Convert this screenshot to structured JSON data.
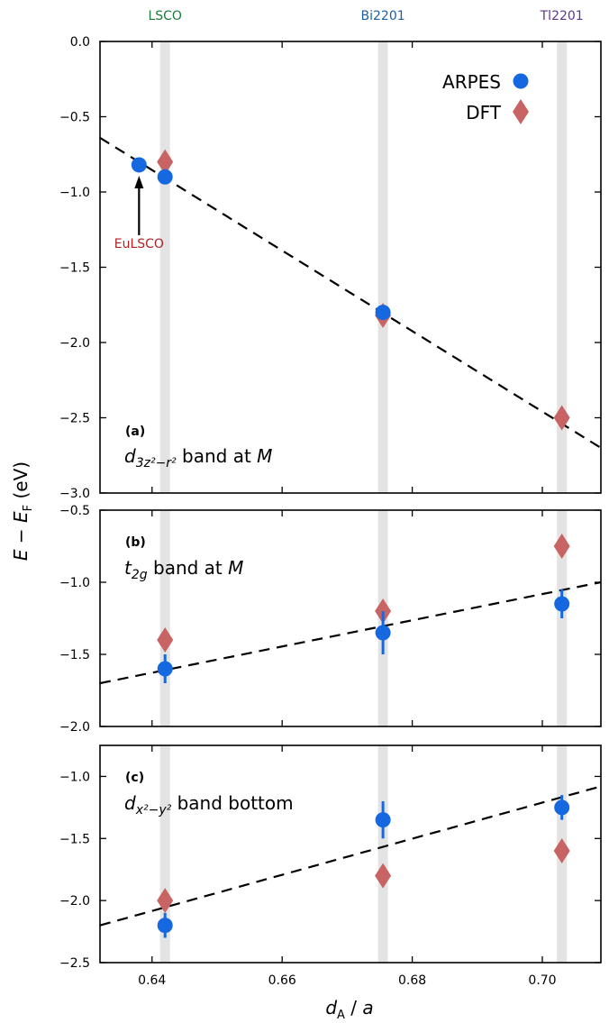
{
  "figure": {
    "ylabel": "E − E_F (eV)",
    "xlabel": "d_A / a",
    "top_labels": [
      {
        "text": "LSCO",
        "x": 0.642,
        "color": "#1a7a3a"
      },
      {
        "text": "Bi2201",
        "x": 0.6755,
        "color": "#1f5fa0"
      },
      {
        "text": "Tl2201",
        "x": 0.703,
        "color": "#5a3a90"
      }
    ],
    "legend": [
      {
        "label": "ARPES",
        "marker": "circle",
        "color": "#1668e0"
      },
      {
        "label": "DFT",
        "marker": "diamond",
        "color": "#c86464"
      }
    ],
    "colors": {
      "arpes": "#1668e0",
      "dft": "#c86464",
      "band": "#e3e3e3",
      "fit": "#000000",
      "annotation": "#b22222"
    }
  },
  "chart_data": [
    {
      "type": "scatter",
      "panel_label": "(a)",
      "title": "d_{3z²−r²} band at M",
      "xlim": [
        0.632,
        0.709
      ],
      "ylim": [
        -3.0,
        0.0
      ],
      "yticks": [
        0.0,
        -0.5,
        -1.0,
        -1.5,
        -2.0,
        -2.5,
        -3.0
      ],
      "ytick_labels": [
        "0.0",
        "−0.5",
        "−1.0",
        "−1.5",
        "−2.0",
        "−2.5",
        "−3.0"
      ],
      "vbands": [
        0.642,
        0.6755,
        0.703
      ],
      "series": [
        {
          "name": "ARPES",
          "marker": "circle",
          "x": [
            0.638,
            0.642,
            0.6755
          ],
          "y": [
            -0.82,
            -0.9,
            -1.8
          ],
          "yerr": [
            0,
            0,
            0
          ]
        },
        {
          "name": "DFT",
          "marker": "diamond",
          "x": [
            0.642,
            0.6755,
            0.703
          ],
          "y": [
            -0.8,
            -1.82,
            -2.5
          ]
        }
      ],
      "fit_line": {
        "x": [
          0.632,
          0.709
        ],
        "y": [
          -0.64,
          -2.7
        ]
      },
      "annotation": {
        "text": "EuLSCO",
        "x": 0.638,
        "y": -0.82
      }
    },
    {
      "type": "scatter",
      "panel_label": "(b)",
      "title": "t_{2g} band at M",
      "xlim": [
        0.632,
        0.709
      ],
      "ylim": [
        -2.0,
        -0.5
      ],
      "yticks": [
        -0.5,
        -1.0,
        -1.5,
        -2.0
      ],
      "ytick_labels": [
        "−0.5",
        "−1.0",
        "−1.5",
        "−2.0"
      ],
      "vbands": [
        0.642,
        0.6755,
        0.703
      ],
      "series": [
        {
          "name": "ARPES",
          "marker": "circle",
          "x": [
            0.642,
            0.6755,
            0.703
          ],
          "y": [
            -1.6,
            -1.35,
            -1.15
          ],
          "yerr": [
            0.1,
            0.15,
            0.1
          ]
        },
        {
          "name": "DFT",
          "marker": "diamond",
          "x": [
            0.642,
            0.6755,
            0.703
          ],
          "y": [
            -1.4,
            -1.2,
            -0.75
          ]
        }
      ],
      "fit_line": {
        "x": [
          0.632,
          0.709
        ],
        "y": [
          -1.7,
          -1.0
        ]
      }
    },
    {
      "type": "scatter",
      "panel_label": "(c)",
      "title": "d_{x²−y²} band bottom",
      "xlim": [
        0.632,
        0.709
      ],
      "ylim": [
        -2.5,
        -0.75
      ],
      "yticks": [
        -1.0,
        -1.5,
        -2.0,
        -2.5
      ],
      "ytick_labels": [
        "−1.0",
        "−1.5",
        "−2.0",
        "−2.5"
      ],
      "xticks": [
        0.64,
        0.66,
        0.68,
        0.7
      ],
      "xtick_labels": [
        "0.64",
        "0.66",
        "0.68",
        "0.70"
      ],
      "vbands": [
        0.642,
        0.6755,
        0.703
      ],
      "series": [
        {
          "name": "ARPES",
          "marker": "circle",
          "x": [
            0.642,
            0.6755,
            0.703
          ],
          "y": [
            -2.2,
            -1.35,
            -1.25
          ],
          "yerr": [
            0.1,
            0.15,
            0.1
          ]
        },
        {
          "name": "DFT",
          "marker": "diamond",
          "x": [
            0.642,
            0.6755,
            0.703
          ],
          "y": [
            -2.0,
            -1.8,
            -1.6
          ]
        }
      ],
      "fit_line": {
        "x": [
          0.632,
          0.709
        ],
        "y": [
          -2.2,
          -1.08
        ]
      }
    }
  ]
}
